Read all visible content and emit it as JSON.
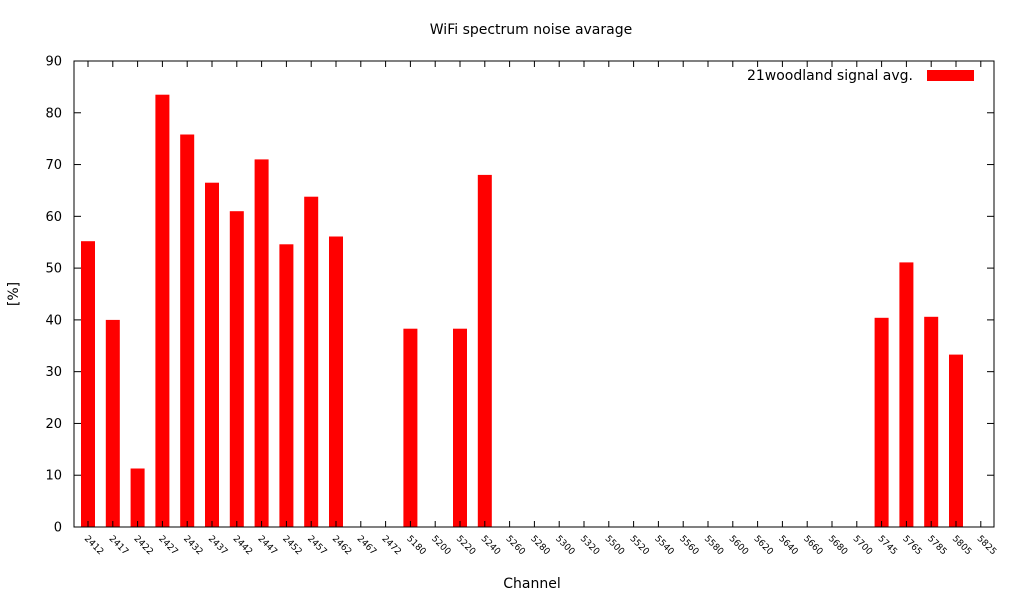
{
  "chart_data": {
    "type": "bar",
    "title": "WiFi spectrum noise avarage",
    "xlabel": "Channel",
    "ylabel": "[%]",
    "ylim": [
      0,
      90
    ],
    "yticks": [
      0,
      10,
      20,
      30,
      40,
      50,
      60,
      70,
      80,
      90
    ],
    "grid": false,
    "legend_position": "top-right",
    "categories": [
      "2412",
      "2417",
      "2422",
      "2427",
      "2432",
      "2437",
      "2442",
      "2447",
      "2452",
      "2457",
      "2462",
      "2467",
      "2472",
      "5180",
      "5200",
      "5220",
      "5240",
      "5260",
      "5280",
      "5300",
      "5320",
      "5500",
      "5520",
      "5540",
      "5560",
      "5580",
      "5600",
      "5620",
      "5640",
      "5660",
      "5680",
      "5700",
      "5745",
      "5765",
      "5785",
      "5805",
      "5825"
    ],
    "series": [
      {
        "name": "21woodland signal avg.",
        "color": "#ff0000",
        "values": [
          55.2,
          40.0,
          11.3,
          83.5,
          75.8,
          66.5,
          61.0,
          71.0,
          54.6,
          63.8,
          56.1,
          0,
          0,
          38.3,
          0,
          38.3,
          68.0,
          0,
          0,
          0,
          0,
          0,
          0,
          0,
          0,
          0,
          0,
          0,
          0,
          0,
          0,
          0,
          40.4,
          51.1,
          40.6,
          33.3,
          0
        ]
      }
    ]
  }
}
